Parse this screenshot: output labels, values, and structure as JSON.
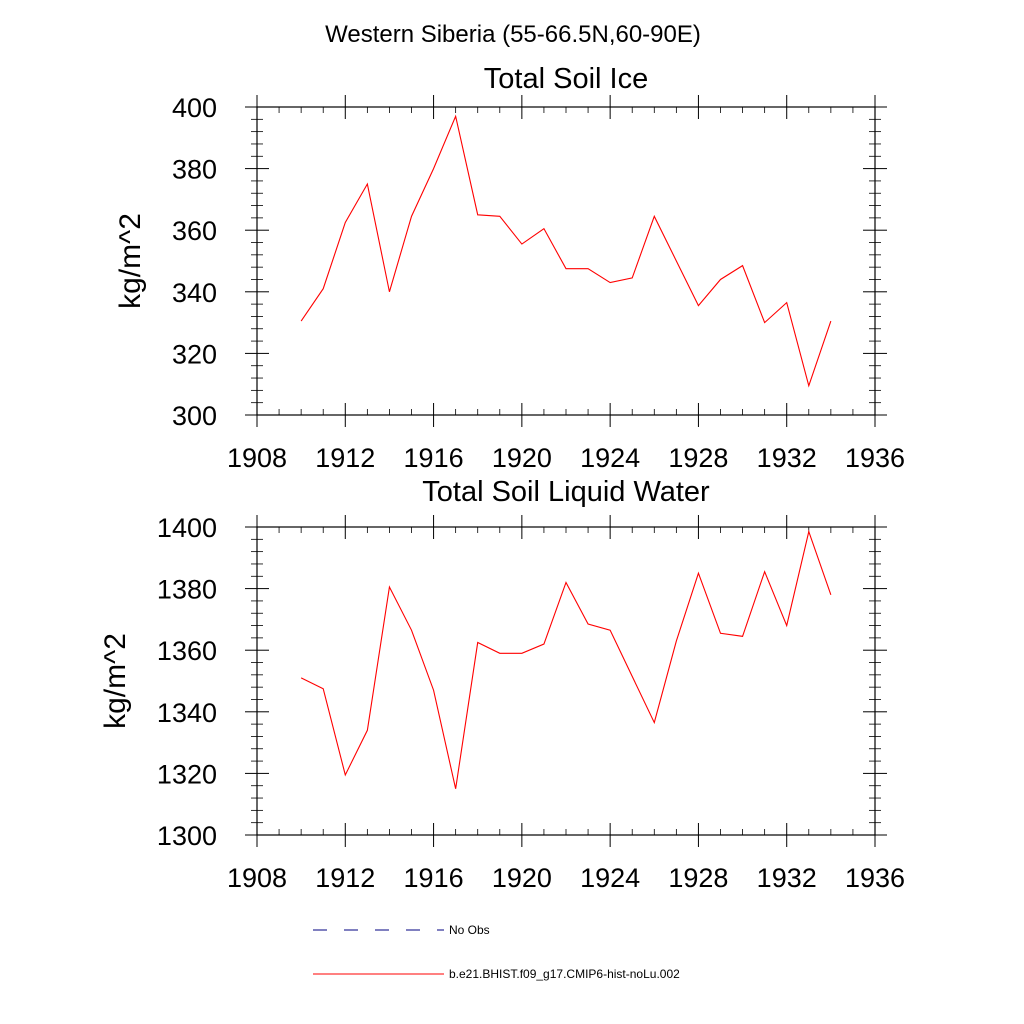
{
  "figure": {
    "title": "Western Siberia (55-66.5N,60-90E)"
  },
  "legend": {
    "items": [
      {
        "label": "No Obs",
        "style": "dashed",
        "color": "#000080"
      },
      {
        "label": "b.e21.BHIST.f09_g17.CMIP6-hist-noLu.002",
        "style": "solid",
        "color": "#ff0000"
      }
    ]
  },
  "chart_data": [
    {
      "type": "line",
      "title": "Total Soil Ice",
      "xlabel": "",
      "ylabel": "kg/m^2",
      "xlim": [
        1908,
        1936
      ],
      "ylim": [
        300,
        400
      ],
      "xticks": [
        1908,
        1912,
        1916,
        1920,
        1924,
        1928,
        1932,
        1936
      ],
      "yticks": [
        300,
        320,
        340,
        360,
        380,
        400
      ],
      "x_minor_step": 1,
      "y_minor_step": 4,
      "grid": false,
      "series": [
        {
          "color": "#ff0000",
          "x": [
            1910,
            1911,
            1912,
            1913,
            1914,
            1915,
            1916,
            1917,
            1918,
            1919,
            1920,
            1921,
            1922,
            1923,
            1924,
            1925,
            1926,
            1927,
            1928,
            1929,
            1930,
            1931,
            1932,
            1933,
            1934
          ],
          "values": [
            330.5,
            341,
            362.5,
            375,
            340,
            364.5,
            380,
            397,
            365,
            364.5,
            355.5,
            360.5,
            347.5,
            347.5,
            343,
            344.5,
            364.5,
            350,
            335.5,
            344,
            348.5,
            330,
            336.5,
            309.5,
            330.5
          ]
        }
      ]
    },
    {
      "type": "line",
      "title": "Total Soil Liquid Water",
      "xlabel": "",
      "ylabel": "kg/m^2",
      "xlim": [
        1908,
        1936
      ],
      "ylim": [
        1300,
        1400
      ],
      "xticks": [
        1908,
        1912,
        1916,
        1920,
        1924,
        1928,
        1932,
        1936
      ],
      "yticks": [
        1300,
        1320,
        1340,
        1360,
        1380,
        1400
      ],
      "x_minor_step": 1,
      "y_minor_step": 4,
      "grid": false,
      "series": [
        {
          "color": "#ff0000",
          "x": [
            1910,
            1911,
            1912,
            1913,
            1914,
            1915,
            1916,
            1917,
            1918,
            1919,
            1920,
            1921,
            1922,
            1923,
            1924,
            1925,
            1926,
            1927,
            1928,
            1929,
            1930,
            1931,
            1932,
            1933,
            1934
          ],
          "values": [
            1351,
            1347.5,
            1319.5,
            1334,
            1380.5,
            1366.5,
            1347,
            1315,
            1362.5,
            1359,
            1359,
            1362,
            1382,
            1368.5,
            1366.5,
            1351.5,
            1336.5,
            1363,
            1385,
            1365.5,
            1364.5,
            1385.5,
            1368,
            1398.5,
            1378
          ]
        }
      ]
    }
  ]
}
